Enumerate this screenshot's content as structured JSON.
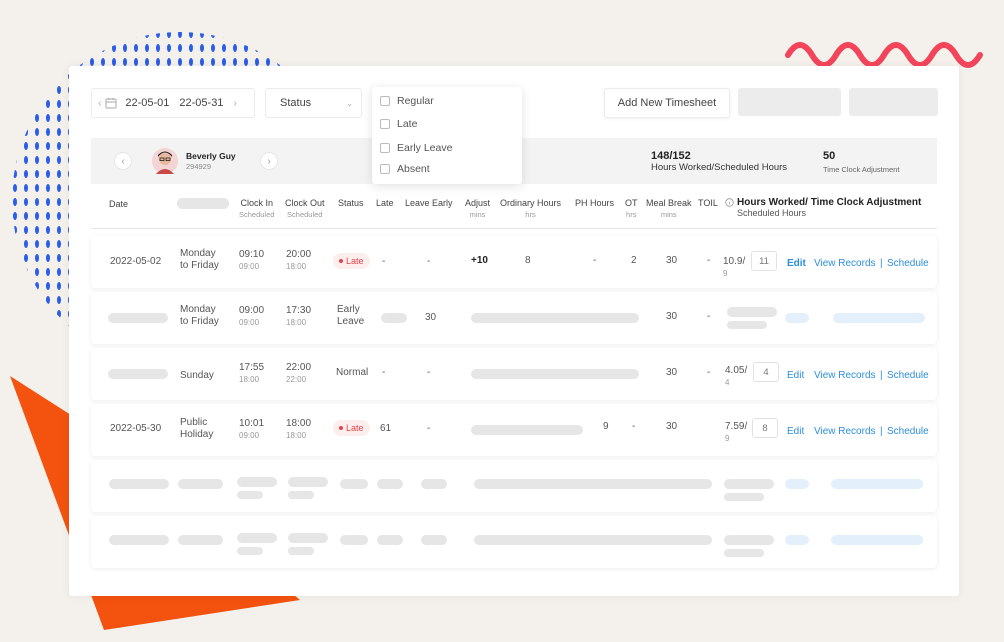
{
  "colors": {
    "accent_blue": "#2d8ee0",
    "late_red": "#e2454b",
    "deco_orange": "#f3520f",
    "deco_pink": "#f2455b",
    "deco_dots": "#2a5de8"
  },
  "toolbar": {
    "date_start": "22-05-01",
    "date_end": "22-05-31",
    "status_label": "Status",
    "add_button_label": "Add New Timesheet"
  },
  "status_dropdown": {
    "options": [
      "Regular",
      "Late",
      "Early Leave",
      "Absent"
    ]
  },
  "employee": {
    "name": "Beverly Guy",
    "id": "294929",
    "hours_value": "148/152",
    "hours_label": "Hours Worked/Scheduled Hours",
    "adjust_value": "50",
    "adjust_label": "Time Clock Adjustment"
  },
  "table_headers": {
    "date": "Date",
    "clock_in": "Clock In",
    "clock_in_sub": "Scheduled",
    "clock_out": "Clock Out",
    "clock_out_sub": "Scheduled",
    "status": "Status",
    "late": "Late",
    "leave_early": "Leave Early",
    "adjust": "Adjust",
    "adjust_sub": "mins",
    "ordinary": "Ordinary Hours",
    "ordinary_sub": "hrs",
    "ph": "PH Hours",
    "ot": "OT",
    "ot_sub": "hrs",
    "meal": "Meal Break",
    "meal_sub": "mins",
    "toil": "TOIL",
    "hours_adj": "Hours Worked/ Time Clock Adjustment",
    "hours_adj_sub": "Scheduled Hours"
  },
  "rows": [
    {
      "date": "2022-05-02",
      "day": [
        "Monday",
        "to Friday"
      ],
      "clock_in": "09:10",
      "clock_in_sched": "09:00",
      "clock_out": "20:00",
      "clock_out_sched": "18:00",
      "status": "Late",
      "late": "-",
      "leave_early": "-",
      "adjust": "+10",
      "ordinary": "8",
      "ph": "-",
      "ot": "2",
      "meal": "30",
      "toil": "-",
      "hours": "10.9/",
      "hours_sched": "9",
      "adjust_box": "11",
      "edit": "Edit",
      "view": "View Records",
      "sep": "|",
      "schedule": "Schedule"
    },
    {
      "day": [
        "Monday",
        "to Friday"
      ],
      "clock_in": "09:00",
      "clock_in_sched": "09:00",
      "clock_out": "17:30",
      "clock_out_sched": "18:00",
      "status": [
        "Early",
        "Leave"
      ],
      "leave_early": "30",
      "meal": "30",
      "toil": "-"
    },
    {
      "day": [
        "Sunday"
      ],
      "clock_in": "17:55",
      "clock_in_sched": "18:00",
      "clock_out": "22:00",
      "clock_out_sched": "22:00",
      "status": "Normal",
      "late": "-",
      "leave_early": "-",
      "meal": "30",
      "toil": "-",
      "hours": "4.05/",
      "hours_sched": "4",
      "adjust_box": "4",
      "edit": "Edit",
      "view": "View Records",
      "sep": "|",
      "schedule": "Schedule"
    },
    {
      "date": "2022-05-30",
      "day": [
        "Public",
        "Holiday"
      ],
      "clock_in": "10:01",
      "clock_in_sched": "09:00",
      "clock_out": "18:00",
      "clock_out_sched": "18:00",
      "status": "Late",
      "late": "61",
      "leave_early": "-",
      "ot": "9",
      "toil_dash": "-",
      "meal": "30",
      "hours": "7.59/",
      "hours_sched": "9",
      "adjust_box": "8",
      "edit": "Edit",
      "view": "View Records",
      "sep": "|",
      "schedule": "Schedule"
    }
  ]
}
